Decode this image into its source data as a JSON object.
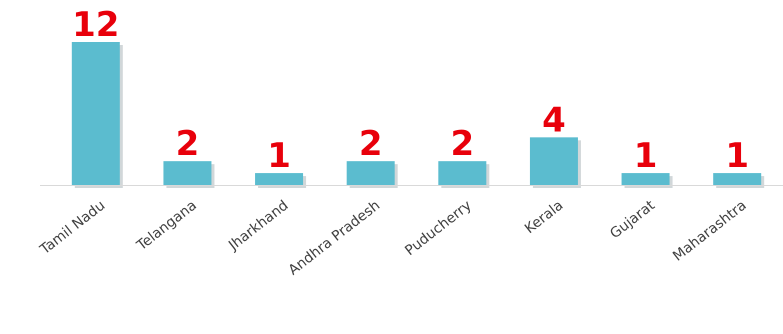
{
  "chart_data": {
    "type": "bar",
    "categories": [
      "Tamil Nadu",
      "Telangana",
      "Jharkhand",
      "Andhra Pradesh",
      "Puducherry",
      "Kerala",
      "Gujarat",
      "Maharashtra"
    ],
    "values": [
      12,
      2,
      1,
      2,
      2,
      4,
      1,
      1
    ],
    "title": "",
    "xlabel": "",
    "ylabel": "",
    "ylim": [
      0,
      12
    ],
    "grid": false,
    "legend": "none",
    "data_labels": true,
    "colors": {
      "bar": "#5bbccf",
      "bar_shadow": "#9aa7ab",
      "data_label": "#e8000b",
      "axis": "#d9d9d9",
      "tick_label": "#404040"
    }
  }
}
